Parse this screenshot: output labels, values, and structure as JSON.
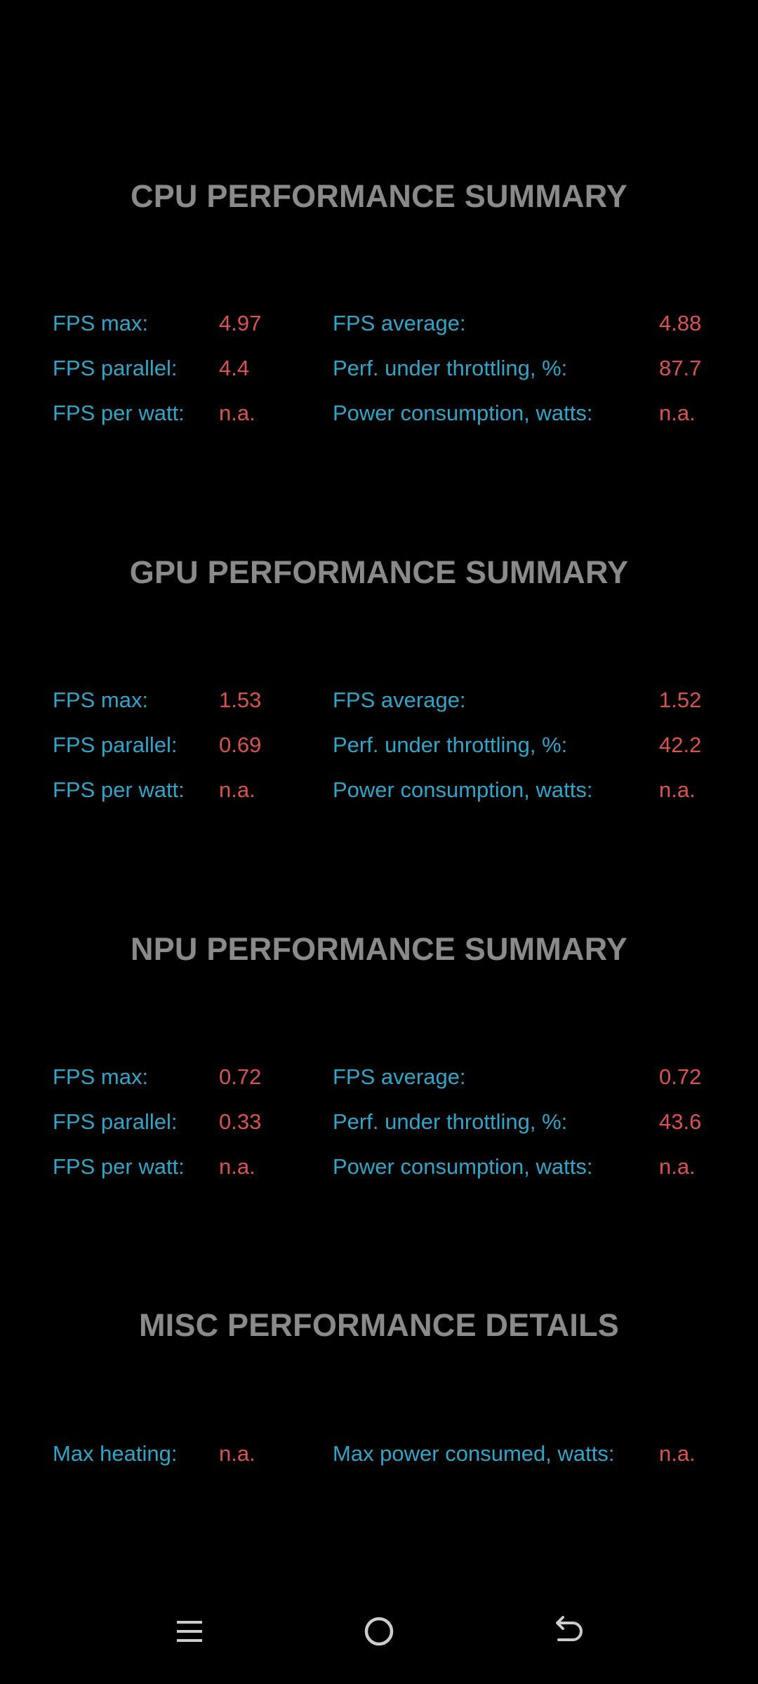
{
  "sections": [
    {
      "title": "CPU PERFORMANCE SUMMARY",
      "rows": [
        {
          "l1": "FPS max:",
          "v1": "4.97",
          "l2": "FPS average:",
          "v2": "4.88"
        },
        {
          "l1": "FPS parallel:",
          "v1": "4.4",
          "l2": "Perf. under throttling, %:",
          "v2": "87.7"
        },
        {
          "l1": "FPS per watt:",
          "v1": "n.a.",
          "l2": "Power consumption, watts:",
          "v2": "n.a."
        }
      ]
    },
    {
      "title": "GPU PERFORMANCE SUMMARY",
      "rows": [
        {
          "l1": "FPS max:",
          "v1": "1.53",
          "l2": "FPS average:",
          "v2": "1.52"
        },
        {
          "l1": "FPS parallel:",
          "v1": "0.69",
          "l2": "Perf. under throttling, %:",
          "v2": "42.2"
        },
        {
          "l1": "FPS per watt:",
          "v1": "n.a.",
          "l2": "Power consumption, watts:",
          "v2": "n.a."
        }
      ]
    },
    {
      "title": "NPU PERFORMANCE SUMMARY",
      "rows": [
        {
          "l1": "FPS max:",
          "v1": "0.72",
          "l2": "FPS average:",
          "v2": "0.72"
        },
        {
          "l1": "FPS parallel:",
          "v1": "0.33",
          "l2": "Perf. under throttling, %:",
          "v2": "43.6"
        },
        {
          "l1": "FPS per watt:",
          "v1": "n.a.",
          "l2": "Power consumption, watts:",
          "v2": "n.a."
        }
      ]
    },
    {
      "title": "MISC PERFORMANCE DETAILS",
      "rows": [
        {
          "l1": "Max heating:",
          "v1": "n.a.",
          "l2": "Max power consumed, watts:",
          "v2": "n.a."
        }
      ]
    }
  ],
  "nav": {
    "recents_icon": "menu-lines-icon",
    "home_icon": "circle-home-icon",
    "back_icon": "back-arrow-icon"
  },
  "colors": {
    "background": "#000000",
    "title": "#8a8a8a",
    "label": "#2fa6c9",
    "value": "#d9534f",
    "nav_icon": "#cccccc"
  }
}
